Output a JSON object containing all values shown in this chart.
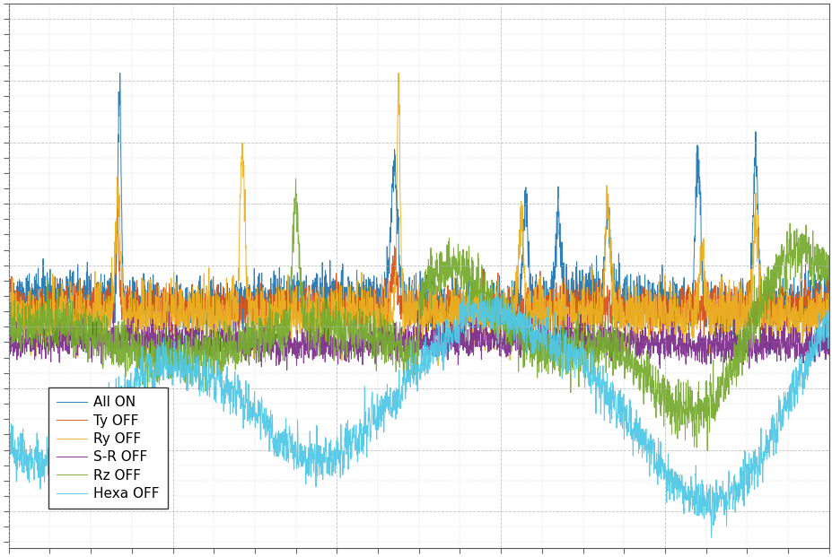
{
  "title": "",
  "xlabel": "",
  "ylabel": "",
  "background_color": "#ffffff",
  "grid_color": "#b0b0b0",
  "legend_labels": [
    "All ON",
    "Ty OFF",
    "Ry OFF",
    "S-R OFF",
    "Rz OFF",
    "Hexa OFF"
  ],
  "line_colors": [
    "#1f77b4",
    "#d95319",
    "#edb120",
    "#7e2f8e",
    "#77ac30",
    "#4fc9e8"
  ],
  "n_points": 5000,
  "seed": 42,
  "figsize": [
    9.28,
    6.21
  ],
  "dpi": 100
}
